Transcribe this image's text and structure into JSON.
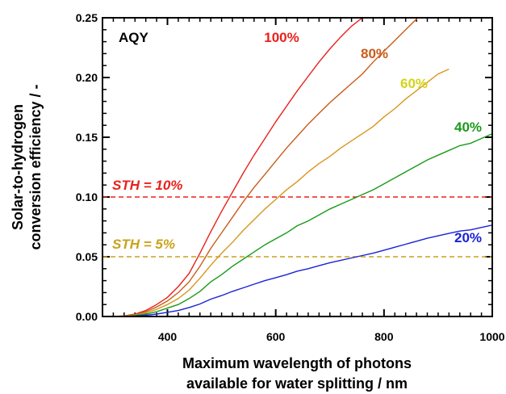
{
  "chart_data": {
    "type": "line",
    "xlabel": [
      "Maximum wavelength of photons",
      "available for water splitting / nm"
    ],
    "ylabel": [
      "Solar-to-hydrogen",
      "conversion efficiency / -"
    ],
    "xlim": [
      280,
      1000
    ],
    "ylim": [
      0,
      0.25
    ],
    "x_ticks": [
      400,
      600,
      800,
      1000
    ],
    "x_tick_labels": [
      "400",
      "600",
      "800",
      "1000"
    ],
    "y_ticks": [
      0,
      0.05,
      0.1,
      0.15,
      0.2,
      0.25
    ],
    "y_tick_labels": [
      "0.00",
      "0.05",
      "0.10",
      "0.15",
      "0.20",
      "0.25"
    ],
    "annotation": "AQY",
    "grid": false,
    "series": [
      {
        "name": "100%",
        "color": "#e8211c",
        "x": [
          280,
          300,
          320,
          340,
          360,
          380,
          400,
          420,
          440,
          460,
          480,
          500,
          520,
          540,
          560,
          580,
          600,
          620,
          640,
          660,
          680,
          700,
          720,
          740,
          760,
          780,
          790
        ],
        "y": [
          0,
          0,
          0.0005,
          0.002,
          0.005,
          0.01,
          0.016,
          0.025,
          0.036,
          0.053,
          0.071,
          0.088,
          0.104,
          0.12,
          0.135,
          0.149,
          0.163,
          0.176,
          0.189,
          0.201,
          0.213,
          0.224,
          0.234,
          0.243,
          0.25,
          0.256,
          0.258
        ]
      },
      {
        "name": "80%",
        "color": "#c95c1a",
        "x": [
          280,
          300,
          320,
          340,
          360,
          380,
          400,
          420,
          440,
          460,
          480,
          500,
          520,
          540,
          560,
          580,
          600,
          620,
          640,
          660,
          680,
          700,
          720,
          740,
          760,
          780,
          800,
          820,
          840,
          860,
          870
        ],
        "y": [
          0,
          0,
          0.0004,
          0.0016,
          0.004,
          0.008,
          0.013,
          0.02,
          0.029,
          0.042,
          0.057,
          0.07,
          0.083,
          0.096,
          0.108,
          0.119,
          0.13,
          0.141,
          0.151,
          0.161,
          0.17,
          0.179,
          0.187,
          0.195,
          0.203,
          0.213,
          0.222,
          0.231,
          0.24,
          0.249,
          0.254
        ]
      },
      {
        "name": "60%",
        "color": "#d9961b",
        "x": [
          280,
          300,
          320,
          340,
          360,
          380,
          400,
          420,
          440,
          460,
          480,
          500,
          520,
          540,
          560,
          580,
          600,
          620,
          640,
          660,
          680,
          700,
          720,
          740,
          760,
          780,
          800,
          820,
          840,
          860,
          880,
          900,
          920
        ],
        "y": [
          0,
          0,
          0.0003,
          0.0012,
          0.003,
          0.006,
          0.01,
          0.015,
          0.022,
          0.032,
          0.043,
          0.053,
          0.062,
          0.072,
          0.081,
          0.09,
          0.098,
          0.106,
          0.113,
          0.121,
          0.128,
          0.134,
          0.141,
          0.147,
          0.153,
          0.159,
          0.167,
          0.174,
          0.182,
          0.189,
          0.196,
          0.203,
          0.207
        ]
      },
      {
        "name": "40%",
        "color": "#1a9a1a",
        "x": [
          280,
          300,
          320,
          340,
          360,
          380,
          400,
          420,
          440,
          460,
          480,
          500,
          520,
          540,
          560,
          580,
          600,
          620,
          640,
          660,
          680,
          700,
          720,
          740,
          760,
          780,
          800,
          820,
          840,
          860,
          880,
          900,
          920,
          940,
          960,
          980,
          1000
        ],
        "y": [
          0,
          0,
          0.0002,
          0.0008,
          0.002,
          0.004,
          0.007,
          0.01,
          0.015,
          0.021,
          0.029,
          0.035,
          0.042,
          0.048,
          0.054,
          0.06,
          0.065,
          0.07,
          0.076,
          0.08,
          0.085,
          0.09,
          0.094,
          0.098,
          0.102,
          0.106,
          0.111,
          0.116,
          0.121,
          0.126,
          0.131,
          0.135,
          0.139,
          0.143,
          0.145,
          0.149,
          0.153
        ]
      },
      {
        "name": "20%",
        "color": "#1a22d6",
        "x": [
          280,
          300,
          320,
          340,
          360,
          380,
          400,
          420,
          440,
          460,
          480,
          500,
          520,
          540,
          560,
          580,
          600,
          620,
          640,
          660,
          680,
          700,
          720,
          740,
          760,
          780,
          800,
          820,
          840,
          860,
          880,
          900,
          920,
          940,
          960,
          980,
          1000
        ],
        "y": [
          0,
          0,
          0.0001,
          0.0004,
          0.001,
          0.002,
          0.0035,
          0.005,
          0.0075,
          0.0105,
          0.0145,
          0.0175,
          0.021,
          0.024,
          0.027,
          0.03,
          0.0325,
          0.035,
          0.038,
          0.04,
          0.0425,
          0.045,
          0.047,
          0.049,
          0.051,
          0.053,
          0.0555,
          0.058,
          0.0605,
          0.063,
          0.0655,
          0.0675,
          0.0695,
          0.0715,
          0.0725,
          0.0745,
          0.0765
        ]
      }
    ],
    "reference_lines": [
      {
        "label": "STH = 10%",
        "y": 0.1,
        "color": "#e8211c"
      },
      {
        "label": "STH = 5%",
        "y": 0.05,
        "color": "#c9a21a"
      }
    ]
  }
}
